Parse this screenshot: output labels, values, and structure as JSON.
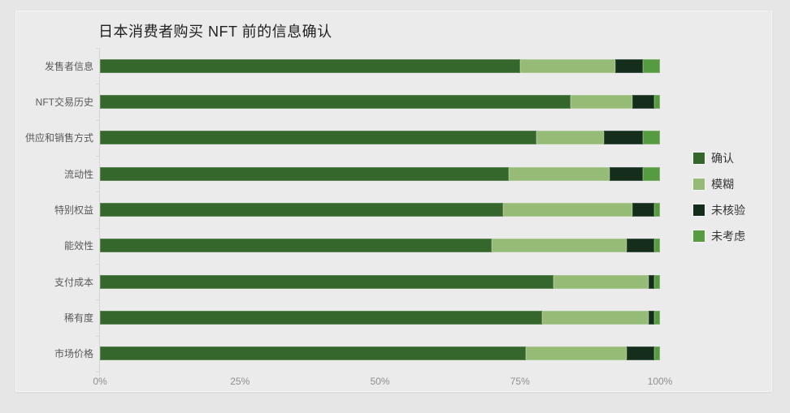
{
  "page": {
    "background_color": "#e6e6e6",
    "card_background_color": "#ebebeb"
  },
  "chart_data": {
    "type": "bar",
    "orientation": "horizontal",
    "stacked": true,
    "unit": "percent",
    "title": "日本消费者购买 NFT 前的信息确认",
    "categories": [
      "发售者信息",
      "NFT交易历史",
      "供应和销售方式",
      "流动性",
      "特别权益",
      "能效性",
      "支付成本",
      "稀有度",
      "市场价格"
    ],
    "series": [
      {
        "name": "确认",
        "key": "confirmed",
        "color": "#35672c",
        "values": [
          75,
          84,
          78,
          73,
          72,
          70,
          81,
          79,
          76
        ]
      },
      {
        "name": "模糊",
        "key": "ambiguous",
        "color": "#95bb77",
        "values": [
          17,
          11,
          12,
          18,
          23,
          24,
          17,
          19,
          18
        ]
      },
      {
        "name": "未核验",
        "key": "unverified",
        "color": "#152e1b",
        "values": [
          5,
          4,
          7,
          6,
          4,
          5,
          1,
          1,
          5
        ]
      },
      {
        "name": "未考虑",
        "key": "not-considered",
        "color": "#579b41",
        "values": [
          3,
          1,
          3,
          3,
          1,
          1,
          1,
          1,
          1
        ]
      }
    ],
    "x_axis": {
      "min": 0,
      "max": 100,
      "tick_labels": [
        "0%",
        "25%",
        "50%",
        "75%",
        "100%"
      ],
      "tick_positions": [
        0,
        25,
        50,
        75,
        100
      ],
      "grid": false
    },
    "y_axis": {
      "axis_line_color": "#d6d6d6"
    },
    "legend": {
      "position": "right",
      "entries": [
        "确认",
        "模糊",
        "未核验",
        "未考虑"
      ]
    }
  }
}
